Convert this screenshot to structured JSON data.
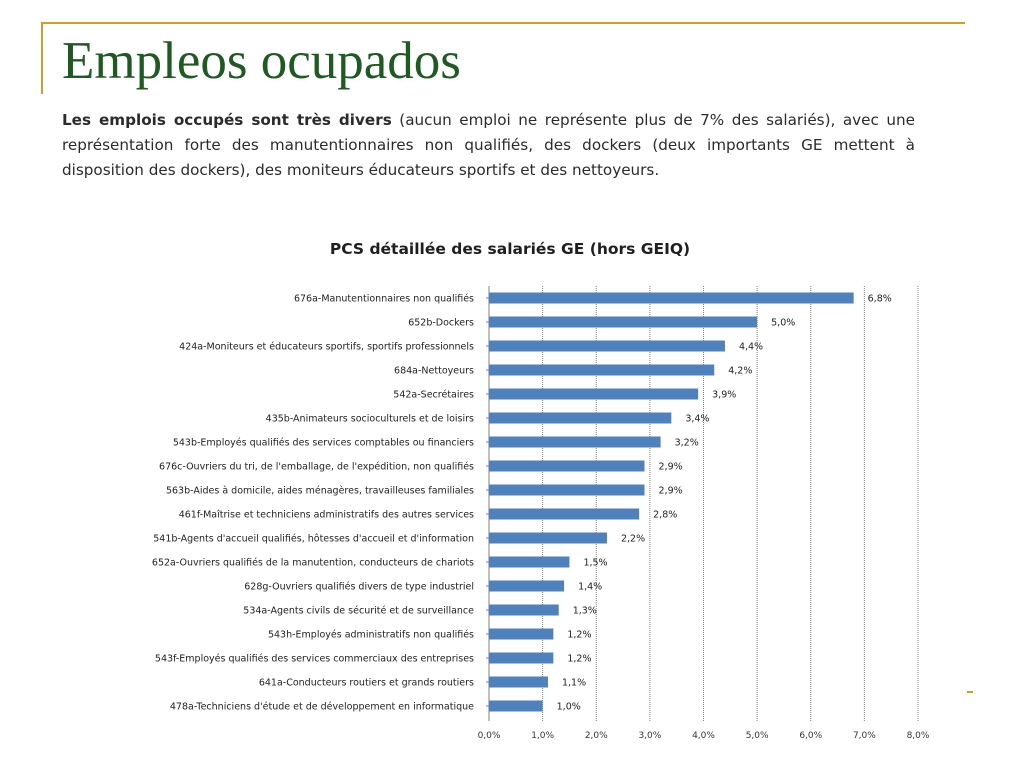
{
  "slide": {
    "title": "Empleos ocupados",
    "intro_bold": "Les emplois occupés sont très divers",
    "intro_rest": " (aucun emploi ne représente plus de 7% des salariés), avec une représentation forte des manutentionnaires non qualifiés, des dockers (deux importants GE mettent à disposition des dockers), des moniteurs éducateurs sportifs et des nettoyeurs."
  },
  "colors": {
    "accent": "#c9a227",
    "title": "#1e5a22",
    "bar": "#4f81bd",
    "grid": "#808080"
  },
  "chart_data": {
    "type": "bar",
    "orientation": "horizontal",
    "title": "PCS détaillée des salariés GE (hors GEIQ)",
    "xlabel": "",
    "ylabel": "",
    "xlim": [
      0,
      8
    ],
    "grid": true,
    "categories": [
      "676a-Manutentionnaires non qualifiés",
      "652b-Dockers",
      "424a-Moniteurs et éducateurs sportifs, sportifs professionnels",
      "684a-Nettoyeurs",
      "542a-Secrétaires",
      "435b-Animateurs socioculturels et de loisirs",
      "543b-Employés qualifiés des services comptables ou financiers",
      "676c-Ouvriers du tri, de l'emballage, de l'expédition, non qualifiés",
      "563b-Aides à domicile, aides ménagères, travailleuses familiales",
      "461f-Maîtrise et techniciens administratifs des autres services",
      "541b-Agents d'accueil qualifiés, hôtesses d'accueil et d'information",
      "652a-Ouvriers qualifiés de la manutention, conducteurs de chariots",
      "628g-Ouvriers qualifiés divers de type industriel",
      "534a-Agents civils de sécurité et de surveillance",
      "543h-Employés administratifs non qualifiés",
      "543f-Employés qualifiés des services commerciaux des entreprises",
      "641a-Conducteurs routiers et grands routiers",
      "478a-Techniciens d'étude et de développement en informatique"
    ],
    "values": [
      6.8,
      5.0,
      4.4,
      4.2,
      3.9,
      3.4,
      3.2,
      2.9,
      2.9,
      2.8,
      2.2,
      1.5,
      1.4,
      1.3,
      1.2,
      1.2,
      1.1,
      1.0
    ],
    "value_labels": [
      "6,8%",
      "5,0%",
      "4,4%",
      "4,2%",
      "3,9%",
      "3,4%",
      "3,2%",
      "2,9%",
      "2,9%",
      "2,8%",
      "2,2%",
      "1,5%",
      "1,4%",
      "1,3%",
      "1,2%",
      "1,2%",
      "1,1%",
      "1,0%"
    ],
    "tick_values": [
      0,
      1,
      2,
      3,
      4,
      5,
      6,
      7,
      8
    ],
    "tick_labels": [
      "0,0%",
      "1,0%",
      "2,0%",
      "3,0%",
      "4,0%",
      "5,0%",
      "6,0%",
      "7,0%",
      "8,0%"
    ]
  }
}
